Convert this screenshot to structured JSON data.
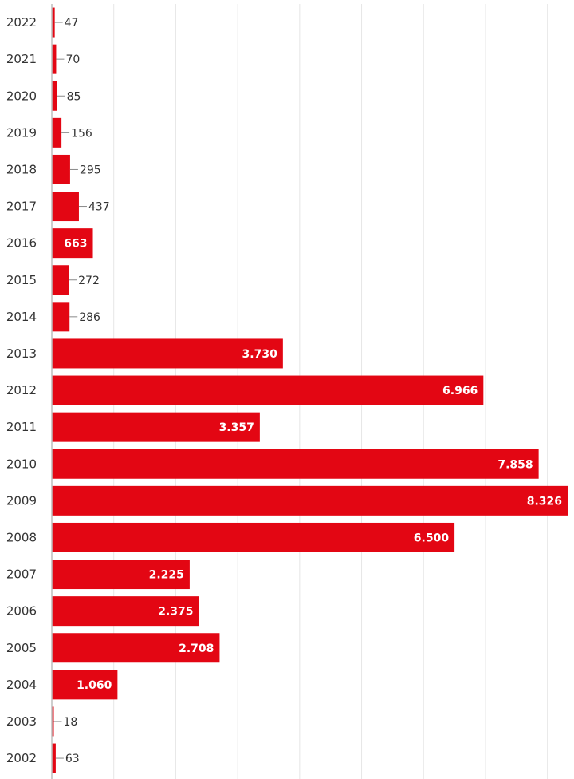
{
  "chart_data": {
    "type": "bar",
    "orientation": "horizontal",
    "title": "",
    "xlabel": "",
    "ylabel": "",
    "categories": [
      "2022",
      "2021",
      "2020",
      "2019",
      "2018",
      "2017",
      "2016",
      "2015",
      "2014",
      "2013",
      "2012",
      "2011",
      "2010",
      "2009",
      "2008",
      "2007",
      "2006",
      "2005",
      "2004",
      "2003",
      "2002"
    ],
    "values": [
      47,
      70,
      85,
      156,
      295,
      437,
      663,
      272,
      286,
      3730,
      6966,
      3357,
      7858,
      8326,
      6500,
      2225,
      2375,
      2708,
      1060,
      18,
      63
    ],
    "value_labels": [
      "47",
      "70",
      "85",
      "156",
      "295",
      "437",
      "663",
      "272",
      "286",
      "3.730",
      "6.966",
      "3.357",
      "7.858",
      "8.326",
      "6.500",
      "2.225",
      "2.375",
      "2.708",
      "1.060",
      "18",
      "63"
    ],
    "xlim": [
      0,
      8326
    ],
    "grid": true,
    "grid_lines": [
      1000,
      2000,
      3000,
      4000,
      5000,
      6000,
      7000,
      8000
    ],
    "bar_color": "#e30613",
    "grid_color": "#e6e6e6",
    "axis_color": "#bdbdbd",
    "inside_label_threshold": 500
  }
}
